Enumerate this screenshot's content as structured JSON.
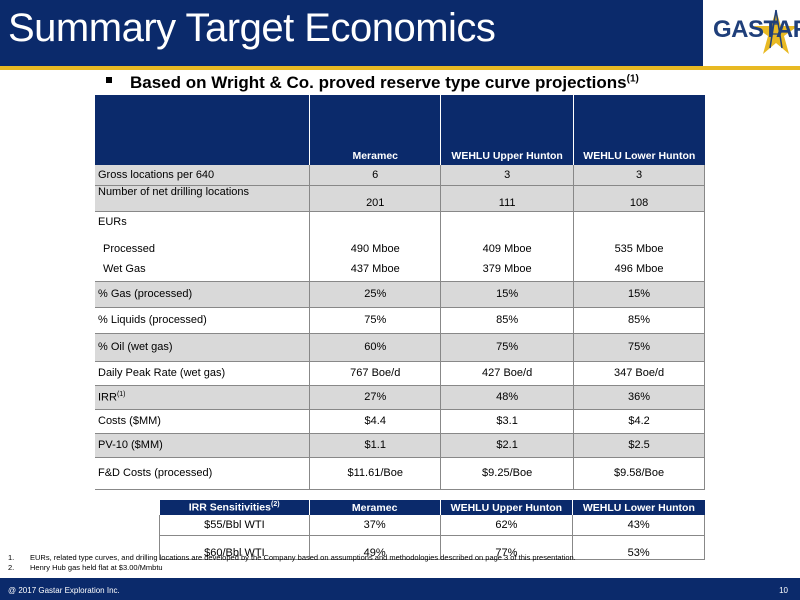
{
  "header": {
    "title": "Summary Target Economics",
    "logo_text": "GASTAR",
    "bg_color": "#0b2a6b",
    "accent_color": "#e8b923"
  },
  "bullet": {
    "text": "Based on Wright & Co. proved reserve type curve projections",
    "sup": "(1)"
  },
  "main_table": {
    "columns": [
      "",
      "Meramec",
      "WEHLU Upper Hunton",
      "WEHLU Lower Hunton"
    ],
    "rows": [
      {
        "label": "Gross locations per 640",
        "values": [
          "6",
          "3",
          "3"
        ]
      },
      {
        "label": "Number of net drilling locations",
        "values": [
          "201",
          "111",
          "108"
        ]
      },
      {
        "label": "EURs",
        "values": [
          "",
          "",
          ""
        ]
      },
      {
        "label": "Processed",
        "values": [
          "490 Mboe",
          "409 Mboe",
          "535 Mboe"
        ]
      },
      {
        "label": "Wet Gas",
        "values": [
          "437 Mboe",
          "379 Mboe",
          "496 Mboe"
        ]
      },
      {
        "label": "% Gas (processed)",
        "values": [
          "25%",
          "15%",
          "15%"
        ]
      },
      {
        "label": "% Liquids (processed)",
        "values": [
          "75%",
          "85%",
          "85%"
        ]
      },
      {
        "label": "% Oil (wet gas)",
        "values": [
          "60%",
          "75%",
          "75%"
        ]
      },
      {
        "label": "Daily Peak Rate (wet gas)",
        "values": [
          "767 Boe/d",
          "427 Boe/d",
          "347 Boe/d"
        ]
      },
      {
        "label": "IRR",
        "label_sup": "(1)",
        "values": [
          "27%",
          "48%",
          "36%"
        ]
      },
      {
        "label": "Costs ($MM)",
        "values": [
          "$4.4",
          "$3.1",
          "$4.2"
        ]
      },
      {
        "label": "PV-10 ($MM)",
        "values": [
          "$1.1",
          "$2.1",
          "$2.5"
        ]
      },
      {
        "label": "F&D Costs (processed)",
        "values": [
          "$11.61/Boe",
          "$9.25/Boe",
          "$9.58/Boe"
        ]
      }
    ]
  },
  "sensitivity_table": {
    "header_label": "IRR Sensitivities",
    "header_sup": "(2)",
    "columns": [
      "Meramec",
      "WEHLU Upper Hunton",
      "WEHLU Lower Hunton"
    ],
    "rows": [
      {
        "label": "$55/Bbl WTI",
        "values": [
          "37%",
          "62%",
          "43%"
        ]
      },
      {
        "label": "$60/Bbl WTI",
        "values": [
          "49%",
          "77%",
          "53%"
        ]
      }
    ]
  },
  "footnotes": [
    {
      "num": "1.",
      "text": "EURs, related type curves, and drilling locations are developed by the Company based on assumptions and methodologies described on page 3 of this presentation."
    },
    {
      "num": "2.",
      "text": "Henry Hub gas held flat at $3.00/Mmbtu"
    }
  ],
  "footer": {
    "copyright": "@ 2017 Gastar Exploration Inc.",
    "page_number": "10"
  }
}
